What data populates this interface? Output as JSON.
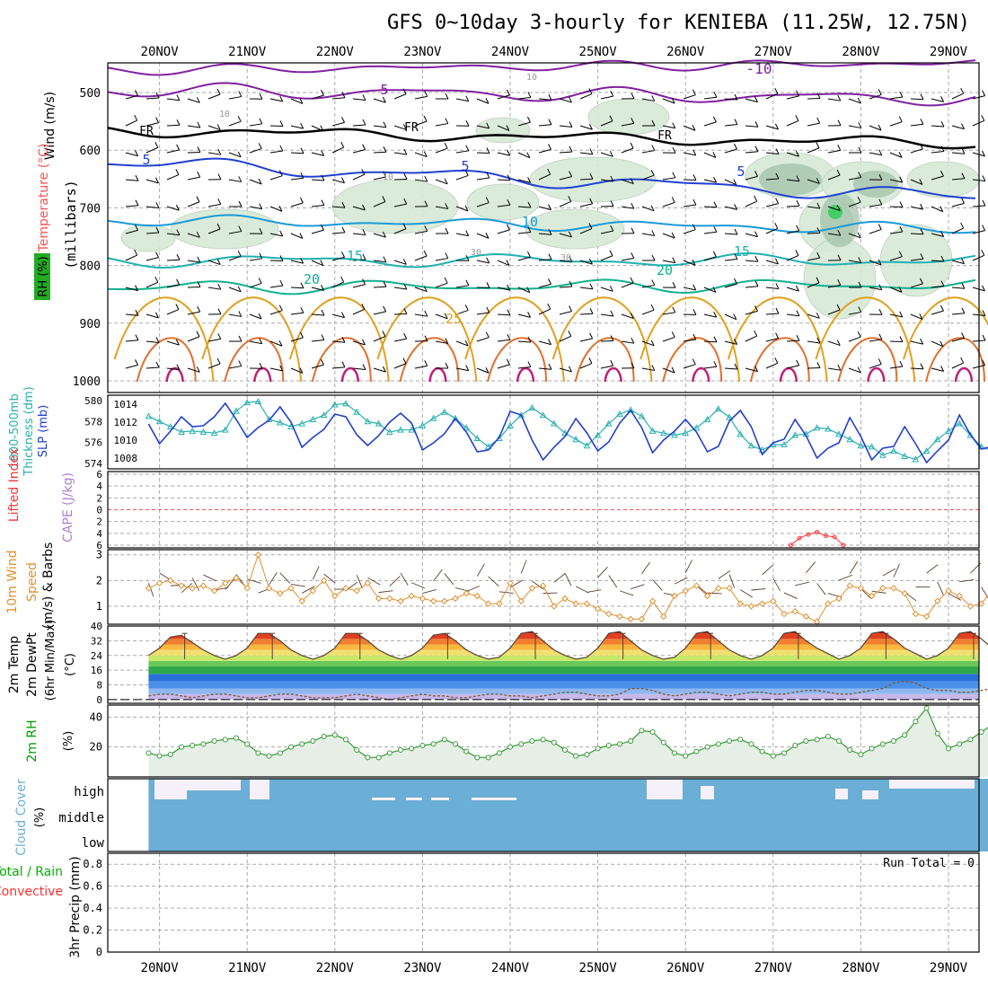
{
  "title": "GFS 0~10day 3-hourly for KENIEBA (11.25W, 12.75N)",
  "run_total_label": "Run Total = 0",
  "colors": {
    "wind_label": "#e05a1a",
    "temp_label": "#ff5050",
    "wind_units": "#1a3bcc",
    "rh_label": "#00a000",
    "thickness": "#2ab0b0",
    "slp": "#2040d0",
    "lifted": "#ff3030",
    "cape": "#b080d0",
    "wind10": "#e09030",
    "cloud": "#6baed6",
    "precip_total": "#00b000",
    "precip_conv": "#ff3030",
    "rh2m": "#3a9a3a"
  },
  "chart_data": [
    {
      "type": "contour",
      "panel": "upper_air",
      "x": [
        "20NOV",
        "21NOV",
        "22NOV",
        "23NOV",
        "24NOV",
        "25NOV",
        "26NOV",
        "27NOV",
        "28NOV",
        "29NOV"
      ],
      "ylabel": "(millibars)",
      "side_labels": {
        "wind": "Wind (m/s)",
        "temp": "Temperature (°C)",
        "rh": "RH (%)"
      },
      "yticks": [
        500,
        600,
        700,
        800,
        900,
        1000
      ],
      "contour_labels": [
        "-10",
        "5",
        "FR",
        "FR",
        "FR",
        "5",
        "5",
        "5",
        "10",
        "15",
        "15",
        "20",
        "20",
        "25",
        "30",
        "30",
        "10",
        "10",
        "10"
      ]
    },
    {
      "type": "line",
      "panel": "thickness_slp",
      "left_axis": {
        "label": "1000-500mb Thickness (dm)",
        "ticks": [
          574,
          576,
          578,
          580
        ],
        "ylim": [
          573.5,
          580.5
        ]
      },
      "right_axis": {
        "label": "SLP (mb)",
        "ticks": [
          1008,
          1010,
          1012,
          1014
        ],
        "ylim": [
          1006.8,
          1015
        ]
      },
      "series": [
        {
          "name": "1000-500mb Thickness (dm)",
          "axis": "left",
          "values": [
            578.5,
            578.0,
            577.5,
            577.0,
            577.1,
            577.0,
            576.9,
            577.2,
            579.0,
            579.8,
            579.9,
            578.2,
            577.9,
            577.5,
            577.8,
            578.2,
            578.6,
            579.6,
            579.7,
            578.9,
            578.0,
            577.8,
            577.0,
            577.2,
            577.2,
            577.6,
            578.3,
            578.9,
            578.3,
            577.4,
            576.4,
            575.6,
            576.4,
            577.6,
            578.6,
            579.3,
            578.6,
            577.8,
            576.9,
            576.3,
            575.7,
            576.7,
            577.8,
            578.7,
            579.1,
            578.5,
            577.1,
            576.9,
            576.7,
            576.9,
            577.4,
            578.2,
            579.2,
            578.4,
            576.8,
            575.7,
            575.3,
            575.8,
            575.8,
            576.7,
            576.8,
            577.4,
            577.3,
            576.8,
            576.3,
            575.7,
            575.6,
            574.8,
            575.2,
            574.7,
            574.4,
            575.2,
            576.3,
            577.1,
            577.8,
            576.7,
            575.6,
            575.2,
            574.8,
            574.5,
            574.2,
            574.2,
            574.9,
            575.3,
            575.3,
            575.0,
            575.3,
            575.4,
            574.7
          ]
        },
        {
          "name": "SLP (mb)",
          "axis": "right",
          "values": [
            1011.8,
            1009.6,
            1011.0,
            1012.6,
            1011.5,
            1011.6,
            1012.6,
            1014.1,
            1012.3,
            1010.3,
            1011.4,
            1012.2,
            1013.7,
            1012.0,
            1009.2,
            1010.3,
            1011.2,
            1012.9,
            1012.6,
            1010.6,
            1009.4,
            1010.5,
            1012.0,
            1013.0,
            1011.9,
            1008.9,
            1009.7,
            1010.7,
            1012.4,
            1010.9,
            1008.7,
            1008.9,
            1010.3,
            1013.2,
            1012.8,
            1010.0,
            1007.8,
            1009.2,
            1010.4,
            1012.4,
            1010.8,
            1008.8,
            1009.8,
            1011.9,
            1013.3,
            1011.4,
            1008.6,
            1010.0,
            1011.0,
            1012.3,
            1010.9,
            1008.7,
            1009.3,
            1012.1,
            1013.3,
            1011.5,
            1008.4,
            1009.7,
            1010.1,
            1012.3,
            1010.5,
            1008.0,
            1009.1,
            1009.7,
            1012.5,
            1010.4,
            1007.8,
            1009.1,
            1009.3,
            1011.5,
            1009.6,
            1007.5,
            1008.8,
            1010.0,
            1012.8,
            1010.6,
            1009.0,
            1009.3,
            1010.1,
            1011.7,
            1010.4,
            1008.6,
            1008.9,
            1010.4,
            1013.3,
            1012.3,
            1011.4,
            1012.9
          ]
        }
      ]
    },
    {
      "type": "line",
      "panel": "lifted_cape",
      "left_axis": {
        "label": "Lifted Index",
        "ticks": [
          6,
          4,
          2,
          0,
          2,
          4,
          6
        ]
      },
      "right_axis": {
        "label": "CAPE (J/kg)"
      },
      "series": [
        {
          "name": "Lifted Index",
          "x_days_from_20NOV": [
            7.2,
            7.3,
            7.4,
            7.5,
            7.6,
            7.7,
            7.8
          ],
          "values": [
            -6.0,
            -4.8,
            -4.2,
            -3.8,
            -4.4,
            -4.6,
            -6.0
          ]
        }
      ]
    },
    {
      "type": "line",
      "panel": "wind10m",
      "label": "10m Wind Speed (m/s) & Barbs",
      "yticks": [
        1,
        2,
        3
      ],
      "ylim": [
        0.3,
        3.2
      ],
      "series": [
        {
          "name": "10m Wind Speed",
          "values": [
            1.7,
            1.9,
            2.0,
            1.8,
            1.7,
            1.8,
            1.6,
            1.9,
            2.1,
            1.7,
            3.0,
            1.7,
            1.5,
            1.7,
            1.2,
            1.6,
            2.0,
            1.4,
            1.7,
            1.6,
            1.9,
            1.3,
            1.3,
            1.2,
            1.4,
            1.3,
            1.2,
            1.2,
            1.3,
            1.5,
            1.4,
            1.1,
            1.1,
            1.9,
            1.2,
            1.7,
            1.8,
            1.0,
            1.3,
            1.1,
            1.1,
            0.9,
            0.7,
            0.6,
            0.5,
            0.5,
            1.2,
            0.6,
            1.4,
            1.6,
            1.8,
            1.4,
            1.7,
            1.7,
            1.1,
            1.0,
            1.1,
            1.2,
            0.7,
            0.8,
            0.6,
            0.4,
            1.1,
            1.3,
            1.8,
            1.7,
            1.4,
            1.7,
            1.7,
            1.5,
            0.7,
            0.6,
            1.2,
            1.6,
            1.4,
            1.0,
            1.1,
            1.6,
            1.9,
            1.4,
            1.3,
            1.1,
            2.3,
            1.1,
            0.9,
            0.8,
            1.3,
            2.1,
            1.4
          ]
        }
      ]
    },
    {
      "type": "area",
      "panel": "temp2m",
      "label": "2m Temp 2m DewPt (6hr Min/Max) (°C)",
      "yticks": [
        0,
        8,
        16,
        24,
        32,
        40
      ],
      "ylim": [
        -2,
        40
      ],
      "series": [
        {
          "name": "2m Temp",
          "values": [
            24,
            28,
            34,
            35,
            31,
            27,
            24,
            22,
            24,
            28,
            36,
            36,
            32,
            27,
            24,
            22,
            24,
            28,
            36,
            36,
            32,
            27,
            24,
            22,
            24,
            28,
            35,
            36,
            32,
            27,
            24,
            22,
            23,
            28,
            36,
            37,
            32,
            27,
            24,
            22,
            23,
            28,
            36,
            37,
            32,
            27,
            24,
            22,
            23,
            28,
            36,
            37,
            32,
            27,
            24,
            22,
            24,
            28,
            36,
            37,
            32,
            28,
            25,
            22,
            24,
            28,
            36,
            37,
            33,
            28,
            25,
            22,
            24,
            28,
            36,
            37,
            33,
            28,
            25,
            23,
            24,
            28,
            36,
            37,
            32,
            27,
            24,
            22,
            23
          ]
        },
        {
          "name": "2m DewPt",
          "values": [
            2,
            3,
            3,
            2,
            1,
            2,
            3,
            3,
            2,
            1,
            1,
            2,
            3,
            3,
            2,
            1,
            1,
            1,
            2,
            3,
            2,
            1,
            0,
            1,
            2,
            3,
            2,
            2,
            1,
            1,
            2,
            3,
            3,
            2,
            2,
            1,
            2,
            3,
            4,
            4,
            3,
            2,
            2,
            3,
            6,
            6,
            5,
            3,
            2,
            3,
            4,
            4,
            3,
            2,
            3,
            4,
            4,
            3,
            3,
            4,
            5,
            5,
            4,
            3,
            3,
            4,
            5,
            6,
            9,
            10,
            9,
            6,
            5,
            5,
            4,
            4,
            5,
            6,
            6,
            5,
            4,
            3,
            3,
            4,
            4,
            3,
            2,
            1,
            0
          ]
        }
      ]
    },
    {
      "type": "area",
      "panel": "rh2m",
      "label": "2m RH (%)",
      "yticks": [
        20,
        40
      ],
      "ylim": [
        0,
        48
      ],
      "series": [
        {
          "name": "2m RH",
          "values": [
            16,
            14,
            15,
            20,
            21,
            22,
            24,
            25,
            26,
            22,
            16,
            14,
            16,
            20,
            22,
            24,
            27,
            28,
            25,
            18,
            13,
            13,
            16,
            18,
            19,
            21,
            22,
            25,
            22,
            17,
            13,
            13,
            16,
            20,
            22,
            24,
            25,
            23,
            18,
            14,
            15,
            19,
            21,
            22,
            24,
            31,
            30,
            23,
            16,
            14,
            17,
            20,
            22,
            24,
            25,
            22,
            17,
            14,
            16,
            21,
            24,
            25,
            27,
            24,
            18,
            15,
            19,
            22,
            24,
            28,
            37,
            46,
            29,
            19,
            22,
            25,
            30,
            35,
            39,
            41,
            33,
            21,
            16,
            18,
            21,
            22,
            23,
            24,
            24
          ]
        }
      ]
    },
    {
      "type": "area",
      "panel": "cloud",
      "label": "Cloud Cover (%)",
      "ytick_labels": [
        "high",
        "middle",
        "low"
      ]
    },
    {
      "type": "bar",
      "panel": "precip",
      "label": "3hr Precip (mm)",
      "legend": [
        "Total / Rain",
        "Convective"
      ],
      "yticks": [
        0,
        0.2,
        0.4,
        0.6,
        0.8
      ],
      "ylim": [
        0,
        0.9
      ],
      "values": []
    }
  ]
}
